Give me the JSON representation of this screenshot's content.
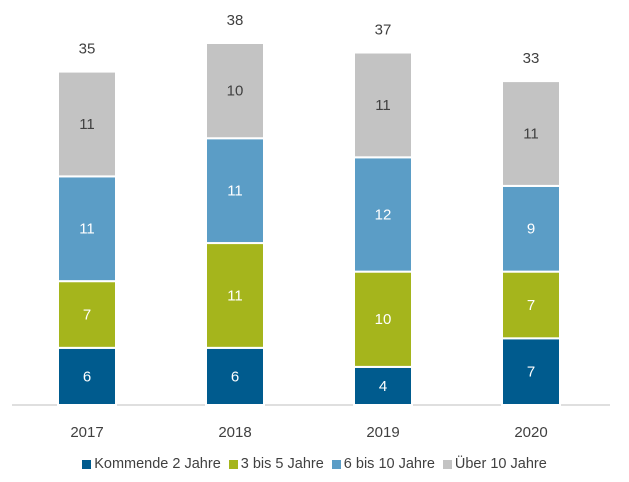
{
  "chart_data": {
    "type": "stacked_bar",
    "categories": [
      "2017",
      "2018",
      "2019",
      "2020"
    ],
    "totals": [
      35,
      38,
      37,
      33
    ],
    "series": [
      {
        "name": "Kommende 2 Jahre",
        "color": "#005b8e",
        "label_color": "#ffffff",
        "values": [
          6,
          6,
          4,
          7
        ]
      },
      {
        "name": "3 bis 5 Jahre",
        "color": "#a5b51c",
        "label_color": "#ffffff",
        "values": [
          7,
          11,
          10,
          7
        ]
      },
      {
        "name": "6 bis 10 Jahre",
        "color": "#5b9dc6",
        "label_color": "#ffffff",
        "values": [
          11,
          11,
          12,
          9
        ]
      },
      {
        "name": "Über 10 Jahre",
        "color": "#c3c3c3",
        "label_color": "#404040",
        "values": [
          11,
          10,
          11,
          11
        ]
      }
    ]
  }
}
